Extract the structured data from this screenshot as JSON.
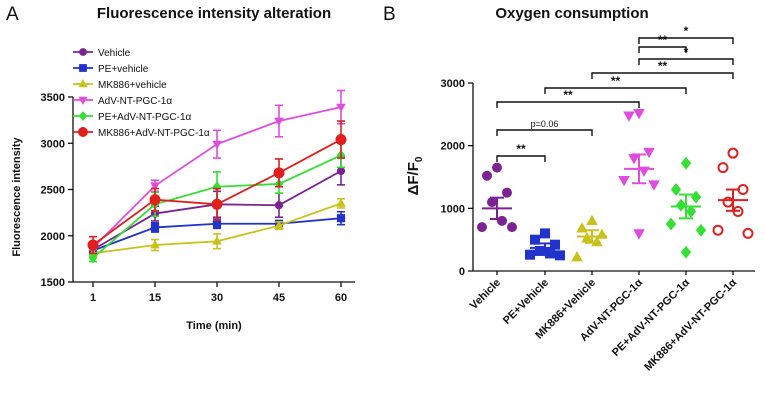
{
  "panel_a": {
    "letter": "A",
    "chart_data": {
      "type": "line",
      "title": "Fluorescence intensity alteration",
      "xlabel": "Time (min)",
      "ylabel": "Fluorescence intensity",
      "x": [
        1,
        15,
        30,
        45,
        60
      ],
      "x_ticks": [
        "1",
        "15",
        "30",
        "45",
        "60"
      ],
      "ylim": [
        1500,
        3500
      ],
      "y_ticks": [
        "1500",
        "2000",
        "2500",
        "3000",
        "3500"
      ],
      "legend_position": "top-left",
      "series": [
        {
          "name": "Vehicle",
          "color": "#7b2394",
          "marker": "circle",
          "values": [
            1850,
            2240,
            2340,
            2330,
            2700
          ],
          "errors": [
            60,
            80,
            140,
            130,
            150
          ]
        },
        {
          "name": "PE+vehicle",
          "color": "#2233cc",
          "marker": "square",
          "values": [
            1840,
            2090,
            2130,
            2130,
            2190
          ],
          "errors": [
            40,
            50,
            50,
            30,
            70
          ]
        },
        {
          "name": "MK886+vehicle",
          "color": "#c9c21a",
          "marker": "triangle-up",
          "values": [
            1810,
            1900,
            1940,
            2110,
            2350
          ],
          "errors": [
            40,
            60,
            80,
            40,
            50
          ]
        },
        {
          "name": "AdV-NT-PGC-1α",
          "color": "#e04ce0",
          "marker": "triangle-down",
          "values": [
            1870,
            2540,
            2990,
            3240,
            3390
          ],
          "errors": [
            60,
            60,
            150,
            170,
            180
          ]
        },
        {
          "name": "PE+AdV-NT-PGC-1α",
          "color": "#33e033",
          "marker": "diamond",
          "values": [
            1760,
            2340,
            2530,
            2560,
            2870
          ],
          "errors": [
            40,
            130,
            160,
            100,
            130
          ]
        },
        {
          "name": "MK886+AdV-NT-PGC-1α",
          "color": "#e01f1f",
          "marker": "circle",
          "values": [
            1900,
            2390,
            2340,
            2680,
            3040
          ],
          "errors": [
            90,
            120,
            170,
            150,
            200
          ]
        }
      ]
    }
  },
  "panel_b": {
    "letter": "B",
    "chart_data": {
      "type": "scatter",
      "title": "Oxygen consumption",
      "ylabel_main": "ΔF/F",
      "ylabel_sub": "0",
      "ylim": [
        0,
        3000
      ],
      "y_ticks": [
        "0",
        "1000",
        "2000",
        "3000"
      ],
      "categories": [
        "Vehicle",
        "PE+Vehicle",
        "MK886+Vehicle",
        "AdV-NT-PGC-1α",
        "PE+AdV-NT-PGC-1α",
        "MK886+AdV-NT-PGC-1α"
      ],
      "groups": [
        {
          "name": "Vehicle",
          "color": "#7b2394",
          "marker": "circle",
          "filled": true,
          "mean": 1000,
          "sem": 170,
          "points": [
            1650,
            1520,
            1250,
            1100,
            800,
            700,
            700
          ]
        },
        {
          "name": "PE+Vehicle",
          "color": "#2233cc",
          "marker": "square",
          "filled": true,
          "mean": 370,
          "sem": 70,
          "points": [
            600,
            500,
            420,
            320,
            280,
            260,
            250
          ]
        },
        {
          "name": "MK886+Vehicle",
          "color": "#c9c21a",
          "marker": "triangle-up",
          "filled": true,
          "mean": 550,
          "sem": 100,
          "points": [
            800,
            680,
            580,
            520,
            460,
            220
          ]
        },
        {
          "name": "AdV-NT-PGC-1α",
          "color": "#e04ce0",
          "marker": "triangle-down",
          "filled": true,
          "mean": 1630,
          "sem": 230,
          "points": [
            2520,
            2480,
            1900,
            1800,
            1600,
            1450,
            1380,
            600
          ]
        },
        {
          "name": "PE+AdV-NT-PGC-1α",
          "color": "#33e033",
          "marker": "diamond",
          "filled": true,
          "mean": 1030,
          "sem": 190,
          "points": [
            1720,
            1300,
            1180,
            1050,
            950,
            750,
            650,
            300
          ]
        },
        {
          "name": "MK886+AdV-NT-PGC-1α",
          "color": "#e01f1f",
          "marker": "circle",
          "filled": false,
          "mean": 1130,
          "sem": 170,
          "points": [
            1880,
            1650,
            1300,
            1100,
            950,
            650,
            600
          ]
        }
      ],
      "comparisons": [
        {
          "from": 0,
          "to": 1,
          "label": "**"
        },
        {
          "from": 0,
          "to": 2,
          "label": "p=0.06"
        },
        {
          "from": 0,
          "to": 3,
          "label": "**"
        },
        {
          "from": 1,
          "to": 4,
          "label": "**"
        },
        {
          "from": 2,
          "to": 5,
          "label": "**"
        },
        {
          "from": 3,
          "to": 5,
          "label": "*"
        },
        {
          "from": 3,
          "to": 4,
          "label": "**"
        },
        {
          "from": 3,
          "to": 5,
          "label": "*"
        }
      ]
    }
  }
}
